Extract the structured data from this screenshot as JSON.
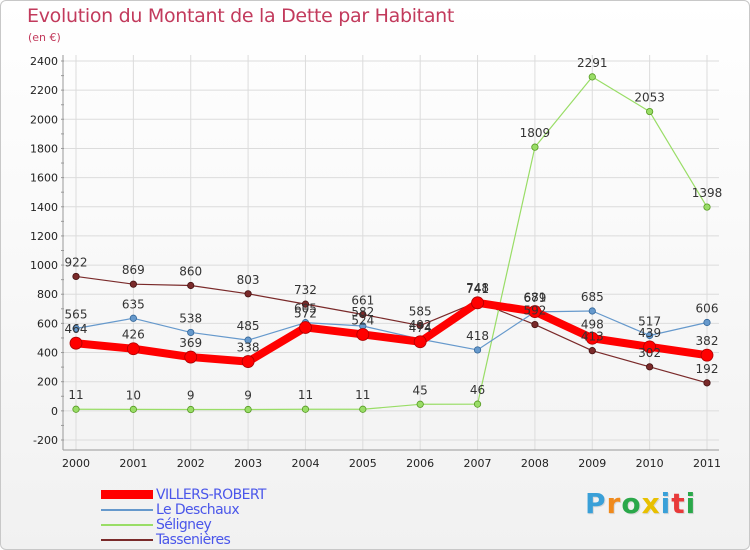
{
  "title": "Evolution du Montant de la Dette par Habitant",
  "subtitle": "(en €)",
  "logo": {
    "text": "Proxiti",
    "colors": [
      "#3aa0d8",
      "#f08a1c",
      "#2aa84a",
      "#e8c000",
      "#3aa0d8",
      "#e83a3a",
      "#2aa84a"
    ]
  },
  "chart_data": {
    "type": "line",
    "title": "Evolution du Montant de la Dette par Habitant",
    "subtitle": "(en €)",
    "xlabel": "",
    "ylabel": "",
    "ylim": [
      -200,
      2400
    ],
    "yticks": [
      -200,
      0,
      200,
      400,
      600,
      800,
      1000,
      1200,
      1400,
      1600,
      1800,
      2000,
      2200,
      2400
    ],
    "categories": [
      "2000",
      "2001",
      "2002",
      "2003",
      "2004",
      "2005",
      "2006",
      "2007",
      "2008",
      "2009",
      "2010",
      "2011"
    ],
    "grid": true,
    "legend_position": "bottom-left",
    "series": [
      {
        "name": "VILLERS-ROBERT",
        "color": "#ff0000",
        "values": [
          464,
          426,
          369,
          338,
          572,
          524,
          474,
          741,
          681,
          498,
          439,
          382
        ],
        "labels": [
          "464",
          "426",
          "369",
          "338",
          "572",
          "524",
          "474",
          "741",
          "681",
          "498",
          "439",
          "382"
        ]
      },
      {
        "name": "Le Deschaux",
        "color": "#6699cc",
        "values": [
          565,
          635,
          538,
          485,
          605,
          582,
          492,
          418,
          679,
          685,
          517,
          606
        ],
        "labels": [
          "565",
          "635",
          "538",
          "485",
          "605",
          "582",
          "492",
          "418",
          "679",
          "685",
          "517",
          "606"
        ]
      },
      {
        "name": "Séligney",
        "color": "#99dd66",
        "values": [
          11,
          10,
          9,
          9,
          11,
          11,
          45,
          46,
          1809,
          2291,
          2053,
          1398
        ],
        "labels": [
          "11",
          "10",
          "9",
          "9",
          "11",
          "11",
          "45",
          "46",
          "1809",
          "2291",
          "2053",
          "1398"
        ]
      },
      {
        "name": "Tassenières",
        "color": "#7a2a2a",
        "values": [
          922,
          869,
          860,
          803,
          732,
          661,
          585,
          748,
          592,
          413,
          302,
          192
        ],
        "labels": [
          "922",
          "869",
          "860",
          "803",
          "732",
          "661",
          "585",
          "748",
          "592",
          "413",
          "302",
          "192"
        ]
      }
    ]
  }
}
